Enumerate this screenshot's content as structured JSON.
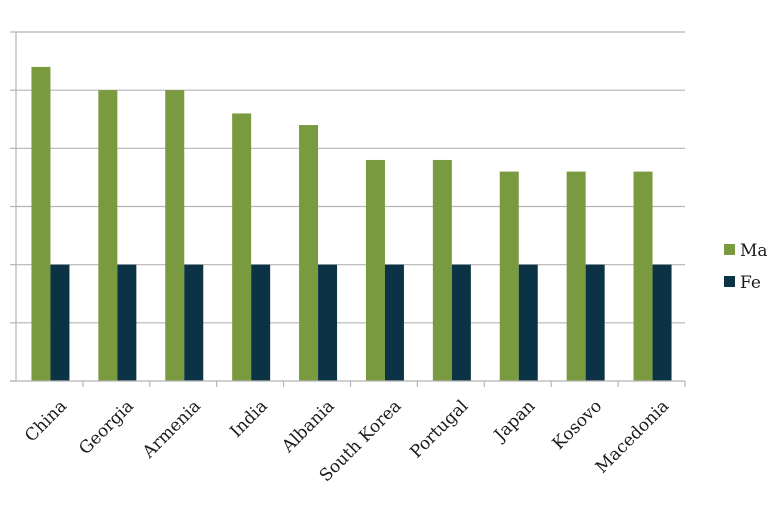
{
  "chart_data": {
    "type": "bar",
    "title": "",
    "xlabel": "",
    "ylabel": "",
    "categories": [
      "China",
      "Georgia",
      "Armenia",
      "India",
      "Albania",
      "South Korea",
      "Portugal",
      "Japan",
      "Kosovo",
      "Macedonia"
    ],
    "series": [
      {
        "name": "Ma",
        "color": "#7a9a3f",
        "values": [
          1.35,
          1.25,
          1.25,
          1.15,
          1.1,
          0.95,
          0.95,
          0.9,
          0.9,
          0.9
        ]
      },
      {
        "name": "Fe",
        "color": "#0b3345",
        "values": [
          0.5,
          0.5,
          0.5,
          0.5,
          0.5,
          0.5,
          0.5,
          0.5,
          0.5,
          0.5
        ]
      }
    ],
    "ylim": [
      0,
      1.5
    ],
    "y_gridlines": 6,
    "grid": true,
    "legend": "right",
    "axis_color": "#b5b5b5"
  }
}
